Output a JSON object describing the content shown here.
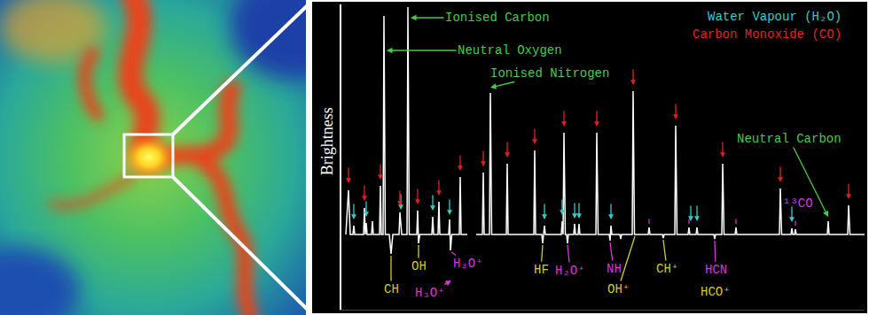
{
  "chart_data": {
    "type": "line",
    "y_label": "Brightness",
    "color": "#ffffff",
    "x": [
      390,
      393,
      395,
      398,
      399,
      400,
      410,
      411,
      412,
      413,
      414,
      419,
      420,
      421,
      428,
      429,
      430,
      432,
      433,
      434.5,
      439,
      441,
      443,
      450,
      451,
      453,
      459,
      460,
      461.5,
      470,
      471,
      472,
      473.5,
      487,
      488,
      489,
      494,
      495,
      496,
      506,
      507,
      508,
      509.5,
      518,
      519,
      520,
      527,
      529,
      537,
      544,
      545,
      546,
      552,
      553,
      554.5,
      571,
      572,
      573,
      602,
      603,
      604,
      611,
      612,
      613,
      614,
      615,
      633,
      634,
      635,
      636,
      637.5,
      639,
      640,
      641,
      647,
      648,
      649,
      652,
      653,
      654,
      672,
      673,
      674.5,
      687,
      688,
      689,
      690,
      699,
      700,
      701,
      713,
      714,
      715.5,
      731,
      732,
      733,
      747,
      748,
      749,
      761,
      762,
      763.5,
      776,
      777,
      778,
      785,
      786,
      787,
      805,
      806,
      807,
      814,
      815,
      816.5,
      829,
      830,
      831,
      879,
      880,
      881.5,
      892,
      893,
      894,
      896,
      897,
      898,
      933,
      934,
      935,
      956,
      957,
      958.5,
      975
    ],
    "values": [
      0,
      50,
      0,
      0,
      10,
      0,
      0,
      30,
      0,
      13,
      0,
      0,
      15,
      0,
      0,
      55,
      0,
      0,
      247,
      0,
      0,
      -22,
      0,
      0,
      25,
      0,
      0,
      257,
      0,
      0,
      27,
      -10,
      0,
      0,
      20,
      0,
      0,
      37,
      0,
      0,
      17,
      -18,
      0,
      0,
      65,
      0,
      0,
      null,
      0,
      0,
      70,
      0,
      0,
      160,
      0,
      0,
      80,
      0,
      0,
      95,
      0,
      0,
      -10,
      0,
      10,
      0,
      0,
      15,
      0,
      115,
      0,
      0,
      -10,
      0,
      0,
      12,
      0,
      0,
      12,
      0,
      0,
      115,
      0,
      0,
      -7,
      10,
      0,
      0,
      -5,
      0,
      0,
      162,
      0,
      0,
      8,
      0,
      0,
      -4,
      0,
      0,
      123,
      0,
      0,
      8,
      0,
      0,
      8,
      0,
      0,
      -5,
      0,
      0,
      80,
      0,
      0,
      8,
      0,
      0,
      52,
      0,
      0,
      7,
      0,
      0,
      6,
      0,
      0,
      15,
      0,
      0,
      33,
      0,
      0
    ],
    "xlim": [
      385,
      975
    ],
    "ylim": [
      -85,
      260
    ],
    "xticks": [],
    "yticks": [],
    "tick_labels": false,
    "grid": false,
    "legend": "upper right",
    "line_markers": [
      {
        "name": "Water Vapour (H₂O)",
        "color": "#33cccc",
        "marker": "arrow",
        "x": [
          399,
          413,
          452,
          488,
          507,
          614,
          634,
          648,
          653,
          689,
          779,
          786,
          893
        ],
        "values": [
          17,
          20,
          28,
          27,
          22,
          17,
          22,
          18,
          18,
          17,
          15,
          15,
          14
        ]
      },
      {
        "name": "Carbon Monoxide (CO)",
        "color": "#e02020",
        "marker": "arrow",
        "x": [
          393,
          411,
          429,
          451,
          471,
          495,
          519,
          545,
          572,
          603,
          636,
          673,
          714,
          762,
          815,
          880,
          957
        ],
        "values": [
          58,
          38,
          62,
          32,
          34,
          44,
          72,
          77,
          87,
          102,
          122,
          122,
          169,
          130,
          87,
          59,
          40
        ]
      },
      {
        "color": "#cc33cc",
        "marker": "tick",
        "x": [
          732,
          777,
          830,
          897
        ],
        "values": [
          12,
          12,
          12,
          10
        ]
      }
    ],
    "annotations": [
      {
        "text": "Ionised Carbon",
        "color": "#44cc44",
        "marker": "arrow",
        "x": 463,
        "y": 245,
        "tx": 561,
        "ty": 245
      },
      {
        "text": "Neutral Oxygen",
        "color": "#44cc44",
        "marker": "arrow",
        "x": 436,
        "y": 208,
        "tx": 575,
        "ty": 208
      },
      {
        "text": "Ionised Nitrogen",
        "color": "#44cc44",
        "marker": "arrow",
        "x": 553,
        "y": 166,
        "tx": 620,
        "ty": 182
      },
      {
        "text": "Neutral Carbon",
        "color": "#44cc44",
        "marker": "arrow",
        "x": 934,
        "y": 20,
        "tx": 890,
        "ty": 108
      },
      {
        "text": "CH",
        "color": "#d4cc22",
        "marker": "line",
        "x": 441,
        "y": -24,
        "tx": 441,
        "ty": -62
      },
      {
        "text": "OH",
        "color": "#d4cc22",
        "marker": "line",
        "x": 472,
        "y": -12,
        "tx": 472,
        "ty": -36
      },
      {
        "text": "H₂O⁺",
        "color": "#dd33dd",
        "marker": "line",
        "x": 509,
        "y": -20,
        "tx": 528,
        "ty": -33
      },
      {
        "text": "H₃O⁺",
        "color": "#dd33dd",
        "marker": "arrow",
        "x": 509,
        "y": -52,
        "tx": 485,
        "ty": -66
      },
      {
        "text": "HF",
        "color": "#d4cc22",
        "marker": "line",
        "x": 612,
        "y": -12,
        "tx": 610,
        "ty": -40
      },
      {
        "text": "H₂O⁺",
        "color": "#dd33dd",
        "marker": "line",
        "x": 640,
        "y": -12,
        "tx": 643,
        "ty": -41
      },
      {
        "text": "NH",
        "color": "#dd33dd",
        "marker": "line",
        "x": 688,
        "y": -9,
        "tx": 692,
        "ty": -39
      },
      {
        "text": "OH⁺",
        "color": "#d4cc22",
        "marker": "line",
        "x": 716,
        "y": -2,
        "tx": 697,
        "ty": -62
      },
      {
        "text": "CH⁺",
        "color": "#d4cc22",
        "marker": "line",
        "x": 748,
        "y": -6,
        "tx": 752,
        "ty": -39
      },
      {
        "text": "HCN",
        "color": "#dd33dd",
        "marker": "line",
        "x": 806,
        "y": -7,
        "tx": 807,
        "ty": -40
      },
      {
        "text": "HCO⁺",
        "color": "#d4cc22",
        "marker": "none",
        "x": 807,
        "y": -65
      },
      {
        "text": "¹³CO",
        "color": "#dd33dd",
        "marker": "none",
        "x": 900,
        "y": 35
      }
    ]
  }
}
